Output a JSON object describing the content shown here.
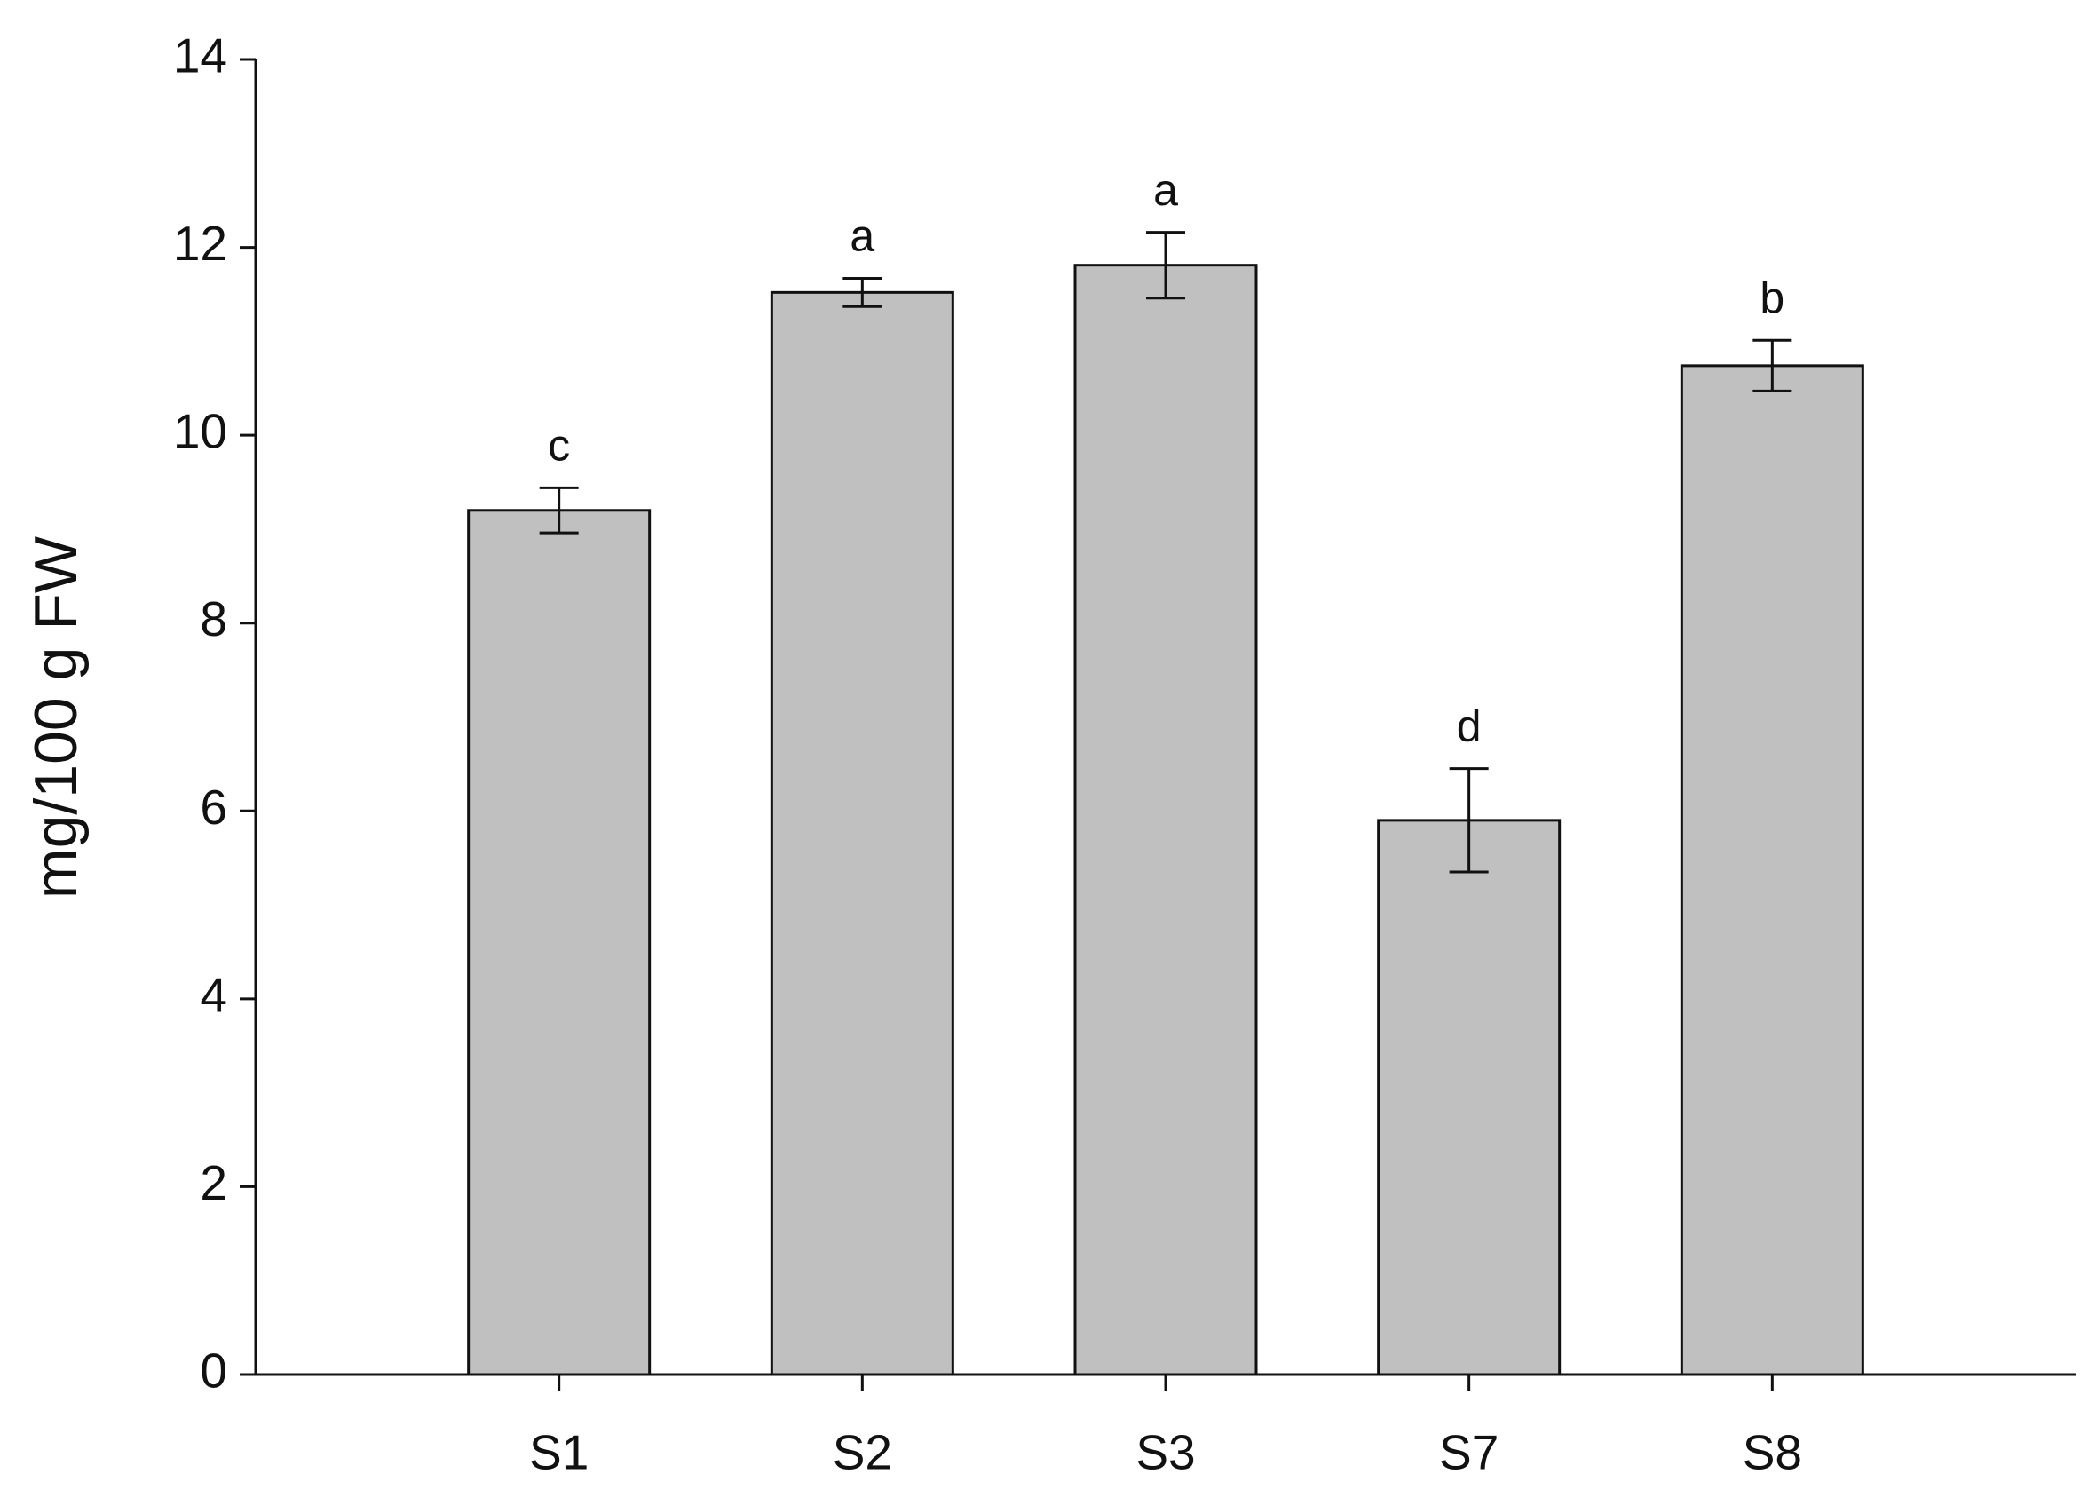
{
  "chart_data": {
    "type": "bar",
    "y_label": "mg/100 g FW",
    "categories": [
      "S1",
      "S2",
      "S3",
      "S7",
      "S8"
    ],
    "values": [
      9.2,
      11.52,
      11.81,
      5.9,
      10.74
    ],
    "errors": [
      0.24,
      0.15,
      0.35,
      0.55,
      0.27
    ],
    "letters": [
      "c",
      "a",
      "a",
      "d",
      "b"
    ],
    "color": "#c0c0c0",
    "ylim": [
      0,
      14
    ],
    "yticks": [
      0,
      2,
      4,
      6,
      8,
      10,
      12,
      14
    ],
    "grid": false
  }
}
